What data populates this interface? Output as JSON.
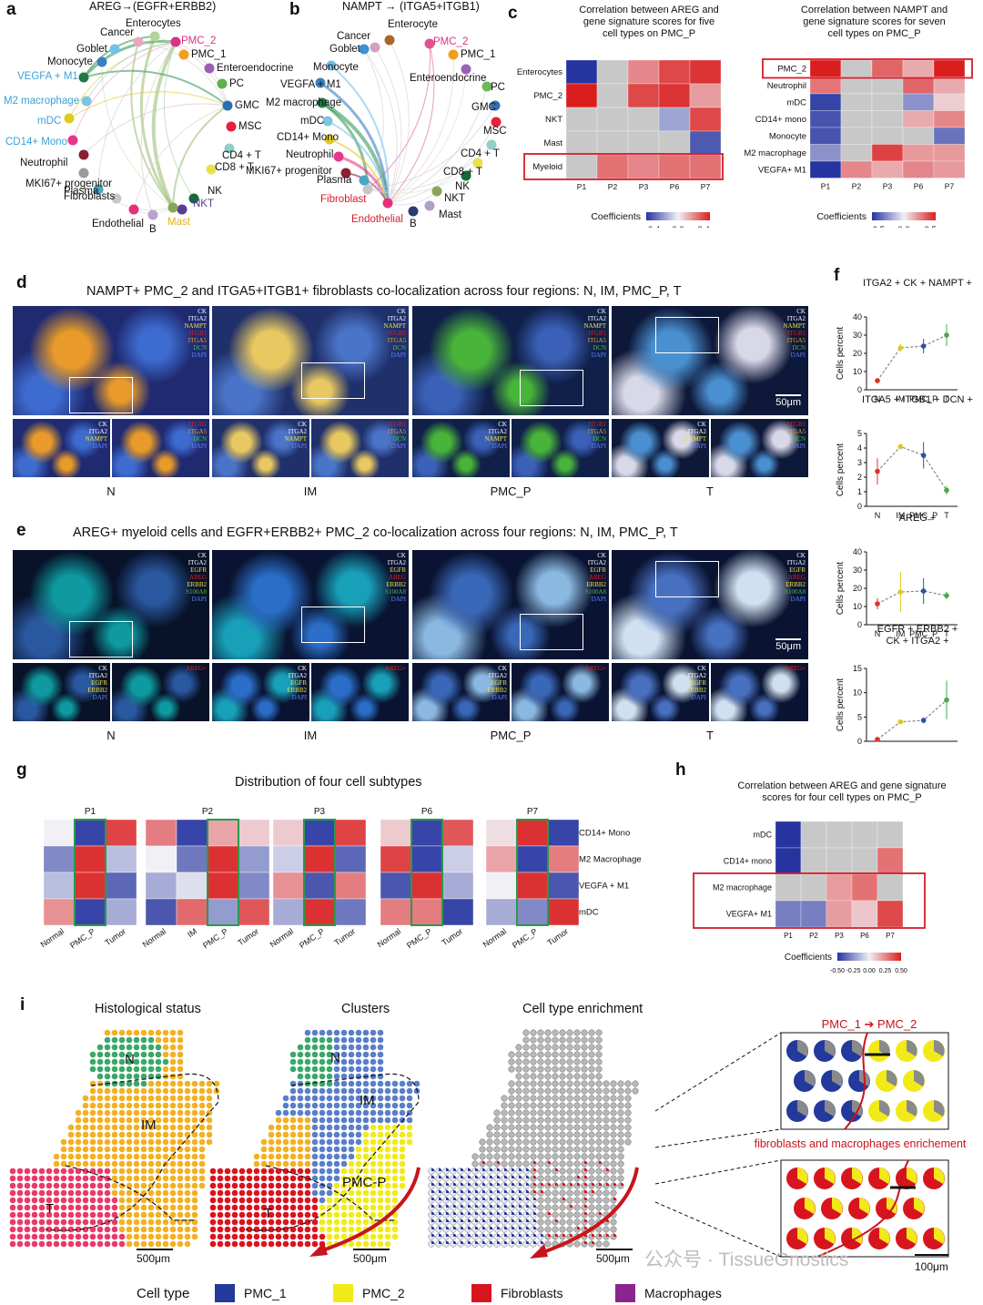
{
  "panels": {
    "a": {
      "label": "a",
      "title": "AREG→(EGFR+ERBB2)",
      "nodes": [
        {
          "name": "Enterocytes",
          "color": "#b4d39a",
          "tc": "#111"
        },
        {
          "name": "Cancer",
          "color": "#e9a8c0",
          "tc": "#111"
        },
        {
          "name": "PMC_2",
          "color": "#d63384",
          "tc": "#d63384"
        },
        {
          "name": "PMC_1",
          "color": "#f29d1c",
          "tc": "#111"
        },
        {
          "name": "Enteroendocrine",
          "color": "#9a5fb8",
          "tc": "#111"
        },
        {
          "name": "PC",
          "color": "#5eb04e",
          "tc": "#111"
        },
        {
          "name": "GMC",
          "color": "#2c6fb0",
          "tc": "#111"
        },
        {
          "name": "MSC",
          "color": "#e51f3c",
          "tc": "#111"
        },
        {
          "name": "CD4 + T",
          "color": "#8fd0c8",
          "tc": "#111"
        },
        {
          "name": "CD8 + T",
          "color": "#e8e14c",
          "tc": "#111"
        },
        {
          "name": "NK",
          "color": "#136b3a",
          "tc": "#111"
        },
        {
          "name": "NKT",
          "color": "#5a3c97",
          "tc": "#5a3c97"
        },
        {
          "name": "Mast",
          "color": "#8aa55a",
          "tc": "#e8b00c"
        },
        {
          "name": "B",
          "color": "#b7a3cf",
          "tc": "#111"
        },
        {
          "name": "Endothelial",
          "color": "#e5307a",
          "tc": "#111"
        },
        {
          "name": "Fibroblasts",
          "color": "#c7c7c7",
          "tc": "#111"
        },
        {
          "name": "Plasma",
          "color": "#49a7c5",
          "tc": "#111"
        },
        {
          "name": "MKI67+ progenitor",
          "color": "#9b9b9b",
          "tc": "#111"
        },
        {
          "name": "Neutrophil",
          "color": "#8a1f33",
          "tc": "#111"
        },
        {
          "name": "CD14+ Mono",
          "color": "#e53888",
          "tc": "#3aa2d6"
        },
        {
          "name": "mDC",
          "color": "#e0cb20",
          "tc": "#3aa2d6"
        },
        {
          "name": "M2 macrophage",
          "color": "#7cc7e0",
          "tc": "#3aa2d6"
        },
        {
          "name": "VEGFA + M1",
          "color": "#1f7a44",
          "tc": "#3aa2d6"
        },
        {
          "name": "Monocyte",
          "color": "#3b7fc0",
          "tc": "#111"
        },
        {
          "name": "Goblet",
          "color": "#74c0e8",
          "tc": "#111"
        }
      ]
    },
    "b": {
      "label": "b",
      "title": "NAMPT → (ITGA5+ITGB1)",
      "nodes": [
        {
          "name": "Enterocyte",
          "color": "#a8662c",
          "tc": "#111"
        },
        {
          "name": "Cancer",
          "color": "#d5a0c0",
          "tc": "#111"
        },
        {
          "name": "PMC_2",
          "color": "#e0548f",
          "tc": "#d63384"
        },
        {
          "name": "PMC_1",
          "color": "#f29d1c",
          "tc": "#111"
        },
        {
          "name": "Enteroendocrine",
          "color": "#9a5fb8",
          "tc": "#111"
        },
        {
          "name": "PC",
          "color": "#6db85a",
          "tc": "#111"
        },
        {
          "name": "GMC",
          "color": "#2c6fb0",
          "tc": "#111"
        },
        {
          "name": "MSC",
          "color": "#e51f3c",
          "tc": "#111"
        },
        {
          "name": "CD4 + T",
          "color": "#8fd0c8",
          "tc": "#111"
        },
        {
          "name": "CD8 + T",
          "color": "#e8e14c",
          "tc": "#111"
        },
        {
          "name": "NK",
          "color": "#136b3a",
          "tc": "#111"
        },
        {
          "name": "NKT",
          "color": "#8aa55a",
          "tc": "#111"
        },
        {
          "name": "Mast",
          "color": "#b0a0c8",
          "tc": "#111"
        },
        {
          "name": "B",
          "color": "#2a3c70",
          "tc": "#111"
        },
        {
          "name": "Endothelial",
          "color": "#e5307a",
          "tc": "#d51c2c"
        },
        {
          "name": "Fibroblast",
          "color": "#c7c7c7",
          "tc": "#d51c2c"
        },
        {
          "name": "Plasma",
          "color": "#49a7c5",
          "tc": "#111"
        },
        {
          "name": "MKI67+ progenitor",
          "color": "#8a1f33",
          "tc": "#111"
        },
        {
          "name": "Neutrophil",
          "color": "#e53888",
          "tc": "#111"
        },
        {
          "name": "CD14+ Mono",
          "color": "#e0cb20",
          "tc": "#111"
        },
        {
          "name": "mDC",
          "color": "#7cc7e0",
          "tc": "#111"
        },
        {
          "name": "M2 macrophage",
          "color": "#1f7a44",
          "tc": "#111"
        },
        {
          "name": "VEGFA + M1",
          "color": "#3b7fc0",
          "tc": "#111"
        },
        {
          "name": "Monocyte",
          "color": "#74c0e8",
          "tc": "#111"
        },
        {
          "name": "Goblet",
          "color": "#3e90d0",
          "tc": "#111"
        }
      ]
    },
    "c": {
      "label": "c",
      "left_title": "Correlation between AREG and\ngene signature scores for five\ncell types on PMC_P",
      "right_title": "Correlation between NAMPT and\ngene signature scores for seven\ncell types on PMC_P",
      "coef_label": "Coefficients"
    },
    "d": {
      "label": "d",
      "title": "NAMPT+ PMC_2 and ITGA5+ITGB1+ fibroblasts co-localization across four regions: N, IM, PMC_P, T",
      "scale": "50μm",
      "markers_main": [
        "CK",
        "ITGA2",
        "NAMPT",
        "ITGB1",
        "ITGA5",
        "DCN",
        "DAPI"
      ],
      "markers_left": [
        "CK",
        "ITGA2",
        "NAMPT",
        "DAPI"
      ],
      "markers_right": [
        "ITGB1",
        "ITGA5",
        "DCN",
        "DAPI"
      ],
      "regions": [
        "N",
        "IM",
        "PMC_P",
        "T"
      ]
    },
    "e": {
      "label": "e",
      "title": "AREG+ myeloid cells and EGFR+ERBB2+ PMC_2  co-localization across four regions: N, IM, PMC_P, T",
      "scale": "50μm",
      "markers_main": [
        "CK",
        "ITGA2",
        "EGFR",
        "AREG",
        "ERBB2",
        "S100A8",
        "DAPI"
      ],
      "markers_left": [
        "CK",
        "ITGA2",
        "EGFR",
        "ERBB2",
        "DAPI"
      ],
      "markers_right": [
        "AREG+"
      ],
      "regions": [
        "N",
        "IM",
        "PMC_P",
        "T"
      ]
    },
    "f": {
      "label": "f",
      "ylabel": "Cells percent",
      "xcats": [
        "N",
        "IM",
        "PMC_P",
        "T"
      ]
    },
    "g": {
      "label": "g",
      "title": "Distribution of four cell subtypes",
      "rows": [
        "CD14+ Mono",
        "M2 Macrophage",
        "VEGFA + M1",
        "mDC"
      ]
    },
    "h": {
      "label": "h",
      "title": "Correlation between AREG and gene signature\nscores for four cell types on PMC_P",
      "coef_label": "Coefficients",
      "ticks": "-0.5 -0.25 0.0 0.25 0.5"
    },
    "i": {
      "label": "i",
      "titles": [
        "Histological status",
        "Clusters",
        "Cell type enrichment"
      ],
      "region_labels": {
        "N": "N",
        "IM": "IM",
        "T": "T",
        "PMCP": "PMC-P"
      },
      "scale": "500μm",
      "zoom_scale": "100μm",
      "arrow_top": "PMC_1 ➔ PMC_2",
      "arrow_bottom": "fibroblasts and macrophages enrichement",
      "legend_title": "Cell type",
      "legend": [
        {
          "name": "PMC_1",
          "color": "#23399b"
        },
        {
          "name": "PMC_2",
          "color": "#f2ea18"
        },
        {
          "name": "Fibroblasts",
          "color": "#d8141f"
        },
        {
          "name": "Macrophages",
          "color": "#8a2590"
        }
      ],
      "watermark": "公众号 · TissueGnostics"
    }
  },
  "chart_data": [
    {
      "type": "heatmap",
      "title": "Correlation between AREG and gene signature scores for five cell types on PMC_P",
      "rows": [
        "Enterocytes",
        "PMC_2",
        "NKT",
        "Mast",
        "Myeloid"
      ],
      "cols": [
        "P1",
        "P2",
        "P3",
        "P6",
        "P7"
      ],
      "values": [
        [
          -0.5,
          null,
          0.25,
          0.4,
          0.45
        ],
        [
          0.5,
          null,
          0.4,
          0.45,
          0.2
        ],
        [
          null,
          null,
          null,
          -0.2,
          0.4
        ],
        [
          null,
          null,
          null,
          null,
          -0.4
        ],
        [
          null,
          0.3,
          0.25,
          0.3,
          0.3
        ]
      ],
      "colorbar": [
        -0.4,
        0.0,
        0.4
      ],
      "highlight_row": "Myeloid"
    },
    {
      "type": "heatmap",
      "title": "Correlation between NAMPT and gene signature scores for seven cell types on PMC_P",
      "rows": [
        "PMC_2",
        "Neutrophil",
        "mDC",
        "CD14+ mono",
        "Monocyte",
        "M2 macrophage",
        "VEGFA+ M1"
      ],
      "cols": [
        "P1",
        "P2",
        "P3",
        "P6",
        "P7"
      ],
      "values": [
        [
          0.6,
          null,
          0.4,
          0.2,
          0.6
        ],
        [
          0.35,
          null,
          null,
          0.4,
          0.2
        ],
        [
          -0.55,
          null,
          null,
          -0.3,
          0.1
        ],
        [
          -0.5,
          null,
          null,
          0.2,
          0.3
        ],
        [
          -0.5,
          null,
          null,
          null,
          -0.4
        ],
        [
          -0.3,
          null,
          0.5,
          0.25,
          0.25
        ],
        [
          -0.6,
          0.3,
          0.2,
          0.3,
          0.25
        ]
      ],
      "colorbar": [
        -0.5,
        0.0,
        0.5
      ],
      "highlight_row": "PMC_2"
    },
    {
      "type": "line",
      "title": "ITGA2 + CK + NAMPT +",
      "x": [
        "N",
        "IM",
        "PMC_P",
        "T"
      ],
      "y": [
        5,
        23,
        24,
        30
      ],
      "err": [
        1.5,
        2,
        4,
        6
      ],
      "ylim": [
        0,
        40
      ],
      "yticks": [
        0,
        10,
        20,
        30,
        40
      ],
      "colors": [
        "#e0322a",
        "#e0c81a",
        "#2c4fa8",
        "#4aa84a"
      ]
    },
    {
      "type": "line",
      "title": "ITGA5 + ITGB1 + DCN +",
      "x": [
        "N",
        "IM",
        "PMC_P",
        "T"
      ],
      "y": [
        2.4,
        4.1,
        3.5,
        1.1
      ],
      "err": [
        0.9,
        0.2,
        0.9,
        0.3
      ],
      "ylim": [
        0,
        5
      ],
      "yticks": [
        0,
        1,
        2,
        3,
        4,
        5
      ],
      "colors": [
        "#e0322a",
        "#e0c81a",
        "#2c4fa8",
        "#4aa84a"
      ]
    },
    {
      "type": "line",
      "title": "AREG +",
      "x": [
        "N",
        "IM",
        "PMC_P",
        "T"
      ],
      "y": [
        11.5,
        18,
        18.5,
        16
      ],
      "err": [
        3,
        11,
        7,
        2
      ],
      "ylim": [
        0,
        40
      ],
      "yticks": [
        0,
        10,
        20,
        30,
        40
      ],
      "colors": [
        "#e0322a",
        "#e0c81a",
        "#2c4fa8",
        "#4aa84a"
      ]
    },
    {
      "type": "line",
      "title": "EGFR + ERBB2 +\nCK + ITGA2 +",
      "x": [
        "N",
        "IM",
        "PMC_P",
        "T"
      ],
      "y": [
        0.4,
        4,
        4.3,
        8.5
      ],
      "err": [
        0.3,
        0.4,
        0.6,
        4
      ],
      "ylim": [
        0,
        15
      ],
      "yticks": [
        0,
        5,
        10,
        15
      ],
      "colors": [
        "#e0322a",
        "#e0c81a",
        "#2c4fa8",
        "#4aa84a"
      ]
    },
    {
      "type": "heatmap",
      "title": "Distribution of four cell subtypes",
      "groups": [
        {
          "name": "P1",
          "cols": [
            "Normal",
            "PMC_P",
            "Tumor"
          ],
          "values": [
            [
              0,
              -1,
              0.9
            ],
            [
              -0.6,
              1,
              -0.3
            ],
            [
              -0.3,
              1,
              -0.8
            ],
            [
              0.5,
              -1,
              -0.4
            ]
          ],
          "highlight": "PMC_P"
        },
        {
          "name": "P2",
          "cols": [
            "Normal",
            "IM",
            "PMC_P",
            "Tumor"
          ],
          "values": [
            [
              0.6,
              -1,
              0.4,
              0.2
            ],
            [
              0,
              -0.7,
              1,
              -0.5
            ],
            [
              -0.4,
              -0.1,
              1,
              -0.6
            ],
            [
              -0.9,
              0.7,
              -0.5,
              0.8
            ]
          ],
          "highlight": "PMC_P"
        },
        {
          "name": "P3",
          "cols": [
            "Normal",
            "PMC_P",
            "Tumor"
          ],
          "values": [
            [
              0.2,
              -1,
              0.9
            ],
            [
              -0.2,
              1,
              -0.8
            ],
            [
              0.5,
              -0.9,
              0.6
            ],
            [
              -0.4,
              1,
              -0.7
            ]
          ],
          "highlight": "PMC_P"
        },
        {
          "name": "P6",
          "cols": [
            "Normal",
            "PMC_P",
            "Tumor"
          ],
          "values": [
            [
              0.2,
              -1,
              0.8
            ],
            [
              0.9,
              -1,
              -0.2
            ],
            [
              -0.9,
              1,
              -0.4
            ],
            [
              0.6,
              0.6,
              -1
            ]
          ],
          "highlight": "PMC_P"
        },
        {
          "name": "P7",
          "cols": [
            "Normal",
            "PMC_P",
            "Tumor"
          ],
          "values": [
            [
              0.1,
              1,
              -1
            ],
            [
              0.4,
              -1,
              0.6
            ],
            [
              0,
              1,
              -0.9
            ],
            [
              -0.4,
              -0.6,
              1
            ]
          ],
          "highlight": "PMC_P"
        }
      ]
    },
    {
      "type": "heatmap",
      "title": "Correlation between AREG and gene signature scores for four cell types on PMC_P",
      "rows": [
        "mDC",
        "CD14+ mono",
        "M2 macrophage",
        "VEGFA+ M1"
      ],
      "cols": [
        "P1",
        "P2",
        "P3",
        "P6",
        "P7"
      ],
      "values": [
        [
          -0.5,
          null,
          null,
          null,
          null
        ],
        [
          -0.5,
          null,
          null,
          null,
          0.3
        ],
        [
          null,
          null,
          0.2,
          0.3,
          null
        ],
        [
          -0.3,
          -0.3,
          0.2,
          0.1,
          0.4
        ]
      ],
      "colorbar": [
        -0.5,
        -0.25,
        0.0,
        0.25,
        0.5
      ],
      "highlight_rows": [
        "M2 macrophage",
        "VEGFA+ M1"
      ]
    }
  ]
}
